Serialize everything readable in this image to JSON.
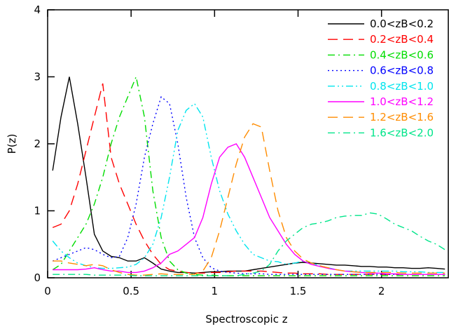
{
  "chart_data": {
    "type": "line",
    "xlabel": "Spectroscopic z",
    "ylabel": "P(z)",
    "xlim": [
      0,
      2.4
    ],
    "ylim": [
      0,
      4
    ],
    "xticks": [
      0,
      0.5,
      1,
      1.5,
      2
    ],
    "yticks": [
      0,
      1,
      2,
      3,
      4
    ],
    "legend": "upper right",
    "x": [
      0.03,
      0.08,
      0.13,
      0.18,
      0.23,
      0.28,
      0.33,
      0.38,
      0.43,
      0.48,
      0.53,
      0.58,
      0.63,
      0.68,
      0.73,
      0.78,
      0.83,
      0.88,
      0.93,
      0.98,
      1.03,
      1.08,
      1.13,
      1.18,
      1.23,
      1.28,
      1.33,
      1.38,
      1.43,
      1.48,
      1.53,
      1.58,
      1.63,
      1.68,
      1.73,
      1.78,
      1.83,
      1.88,
      1.93,
      1.98,
      2.03,
      2.08,
      2.13,
      2.18,
      2.23,
      2.28,
      2.33,
      2.38
    ],
    "series": [
      {
        "name": "0.0<zB<0.2",
        "color": "#000000",
        "style": "solid",
        "values": [
          1.6,
          2.4,
          3.0,
          2.3,
          1.5,
          0.65,
          0.4,
          0.32,
          0.3,
          0.25,
          0.25,
          0.3,
          0.22,
          0.13,
          0.1,
          0.08,
          0.08,
          0.07,
          0.08,
          0.09,
          0.09,
          0.1,
          0.1,
          0.1,
          0.12,
          0.14,
          0.16,
          0.18,
          0.2,
          0.22,
          0.23,
          0.22,
          0.21,
          0.2,
          0.19,
          0.19,
          0.18,
          0.17,
          0.17,
          0.16,
          0.16,
          0.15,
          0.15,
          0.14,
          0.14,
          0.15,
          0.14,
          0.13
        ]
      },
      {
        "name": "0.2<zB<0.4",
        "color": "#ff0000",
        "style": "dashed",
        "values": [
          0.75,
          0.8,
          1.0,
          1.4,
          1.9,
          2.4,
          2.9,
          1.8,
          1.4,
          1.1,
          0.8,
          0.55,
          0.35,
          0.2,
          0.12,
          0.1,
          0.08,
          0.07,
          0.07,
          0.08,
          0.08,
          0.09,
          0.1,
          0.1,
          0.1,
          0.1,
          0.09,
          0.08,
          0.07,
          0.07,
          0.06,
          0.06,
          0.06,
          0.05,
          0.05,
          0.05,
          0.05,
          0.05,
          0.05,
          0.05,
          0.05,
          0.05,
          0.05,
          0.05,
          0.05,
          0.05,
          0.05,
          0.05
        ]
      },
      {
        "name": "0.4<zB<0.6",
        "color": "#00dd00",
        "style": "dashdot",
        "values": [
          0.12,
          0.2,
          0.4,
          0.6,
          0.8,
          1.1,
          1.5,
          2.0,
          2.4,
          2.7,
          3.0,
          2.4,
          1.3,
          0.6,
          0.25,
          0.12,
          0.07,
          0.05,
          0.04,
          0.04,
          0.03,
          0.03,
          0.03,
          0.03,
          0.03,
          0.03,
          0.03,
          0.03,
          0.03,
          0.03,
          0.03,
          0.03,
          0.03,
          0.03,
          0.03,
          0.03,
          0.03,
          0.03,
          0.03,
          0.03,
          0.03,
          0.03,
          0.03,
          0.03,
          0.03,
          0.03,
          0.03,
          0.03
        ]
      },
      {
        "name": "0.6<zB<0.8",
        "color": "#0000ff",
        "style": "dotted",
        "values": [
          0.25,
          0.3,
          0.35,
          0.4,
          0.45,
          0.42,
          0.35,
          0.3,
          0.32,
          0.6,
          1.1,
          1.8,
          2.3,
          2.7,
          2.6,
          2.0,
          1.2,
          0.6,
          0.3,
          0.15,
          0.1,
          0.08,
          0.07,
          0.06,
          0.06,
          0.06,
          0.05,
          0.05,
          0.05,
          0.05,
          0.05,
          0.05,
          0.05,
          0.05,
          0.05,
          0.05,
          0.05,
          0.05,
          0.05,
          0.05,
          0.05,
          0.05,
          0.05,
          0.05,
          0.05,
          0.05,
          0.05,
          0.05
        ]
      },
      {
        "name": "0.8<zB<1.0",
        "color": "#00e5ee",
        "style": "dashdotdot",
        "values": [
          0.55,
          0.4,
          0.3,
          0.22,
          0.18,
          0.15,
          0.14,
          0.14,
          0.15,
          0.16,
          0.2,
          0.3,
          0.5,
          0.9,
          1.5,
          2.2,
          2.5,
          2.6,
          2.4,
          1.8,
          1.3,
          0.95,
          0.7,
          0.5,
          0.35,
          0.3,
          0.25,
          0.24,
          0.2,
          0.22,
          0.25,
          0.22,
          0.18,
          0.15,
          0.12,
          0.1,
          0.1,
          0.1,
          0.1,
          0.1,
          0.1,
          0.1,
          0.09,
          0.09,
          0.09,
          0.08,
          0.08,
          0.08
        ]
      },
      {
        "name": "1.0<zB<1.2",
        "color": "#ff00ff",
        "style": "solid",
        "values": [
          0.12,
          0.12,
          0.12,
          0.12,
          0.13,
          0.15,
          0.12,
          0.1,
          0.1,
          0.08,
          0.08,
          0.1,
          0.15,
          0.22,
          0.35,
          0.4,
          0.5,
          0.6,
          0.9,
          1.4,
          1.8,
          1.95,
          2.0,
          1.8,
          1.5,
          1.2,
          0.9,
          0.7,
          0.5,
          0.35,
          0.25,
          0.2,
          0.17,
          0.14,
          0.12,
          0.1,
          0.09,
          0.08,
          0.07,
          0.07,
          0.06,
          0.06,
          0.05,
          0.05,
          0.05,
          0.05,
          0.05,
          0.05
        ]
      },
      {
        "name": "1.2<zB<1.6",
        "color": "#ff8c00",
        "style": "dashed",
        "values": [
          0.25,
          0.25,
          0.22,
          0.2,
          0.18,
          0.2,
          0.18,
          0.12,
          0.08,
          0.05,
          0.04,
          0.04,
          0.05,
          0.06,
          0.05,
          0.05,
          0.05,
          0.05,
          0.1,
          0.3,
          0.7,
          1.2,
          1.7,
          2.1,
          2.3,
          2.25,
          1.6,
          1.0,
          0.6,
          0.4,
          0.28,
          0.22,
          0.18,
          0.15,
          0.12,
          0.1,
          0.09,
          0.08,
          0.08,
          0.08,
          0.08,
          0.08,
          0.07,
          0.07,
          0.07,
          0.07,
          0.07,
          0.07
        ]
      },
      {
        "name": "1.6<zB<2.0",
        "color": "#00e58a",
        "style": "dashdot",
        "values": [
          0.05,
          0.05,
          0.05,
          0.05,
          0.05,
          0.04,
          0.04,
          0.04,
          0.04,
          0.04,
          0.03,
          0.03,
          0.03,
          0.03,
          0.03,
          0.03,
          0.03,
          0.03,
          0.03,
          0.03,
          0.03,
          0.03,
          0.03,
          0.05,
          0.07,
          0.1,
          0.2,
          0.4,
          0.55,
          0.65,
          0.75,
          0.8,
          0.82,
          0.85,
          0.9,
          0.92,
          0.93,
          0.93,
          0.97,
          0.95,
          0.88,
          0.8,
          0.75,
          0.7,
          0.62,
          0.55,
          0.5,
          0.42
        ]
      }
    ]
  }
}
